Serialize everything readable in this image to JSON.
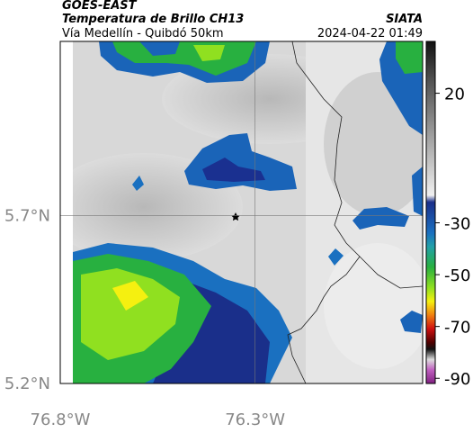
{
  "header": {
    "title": "GOES-EAST",
    "subtitle": "Temperatura de Brillo CH13",
    "source": "SIATA",
    "route": "Vía Medellín - Quibdó 50km",
    "timestamp": "2024-04-22 01:49"
  },
  "map": {
    "latlim": [
      5.2,
      6.22
    ],
    "lonlim": [
      -76.8,
      -75.87
    ],
    "latticks": [
      {
        "value": 5.7,
        "label": "5.7°N"
      },
      {
        "value": 5.2,
        "label": "5.2°N"
      }
    ],
    "lonticks": [
      {
        "value": -76.8,
        "label": "76.8°W"
      },
      {
        "value": -76.3,
        "label": "76.3°W"
      }
    ],
    "grid": true
  },
  "colorbar": {
    "range": [
      40,
      -92
    ],
    "ticks": [
      20,
      -30,
      -50,
      -70,
      -90
    ]
  }
}
